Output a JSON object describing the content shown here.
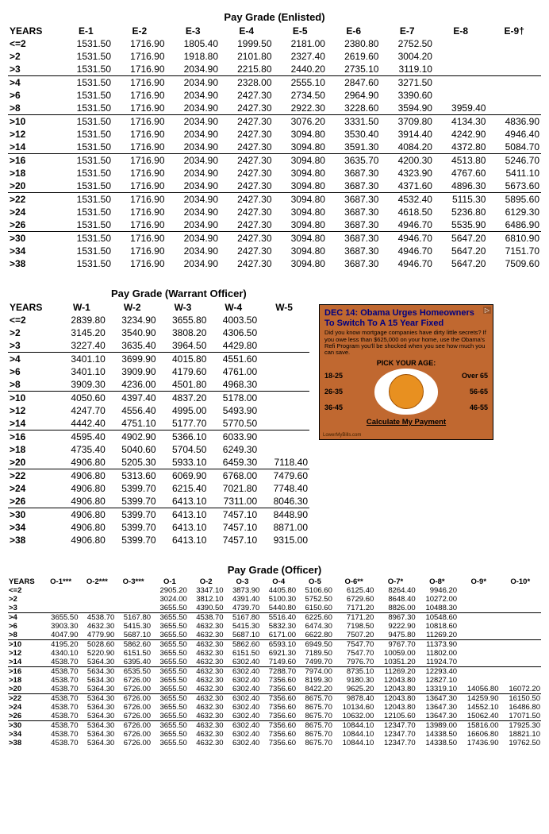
{
  "enlisted": {
    "title": "Pay Grade (Enlisted)",
    "columns": [
      "YEARS",
      "E-1",
      "E-2",
      "E-3",
      "E-4",
      "E-5",
      "E-6",
      "E-7",
      "E-8",
      "E-9†"
    ],
    "groups": [
      {
        "rows": [
          [
            "<=2",
            "1531.50",
            "1716.90",
            "1805.40",
            "1999.50",
            "2181.00",
            "2380.80",
            "2752.50",
            "",
            ""
          ],
          [
            ">2",
            "1531.50",
            "1716.90",
            "1918.80",
            "2101.80",
            "2327.40",
            "2619.60",
            "3004.20",
            "",
            ""
          ],
          [
            ">3",
            "1531.50",
            "1716.90",
            "2034.90",
            "2215.80",
            "2440.20",
            "2735.10",
            "3119.10",
            "",
            ""
          ]
        ]
      },
      {
        "rows": [
          [
            ">4",
            "1531.50",
            "1716.90",
            "2034.90",
            "2328.00",
            "2555.10",
            "2847.60",
            "3271.50",
            "",
            ""
          ],
          [
            ">6",
            "1531.50",
            "1716.90",
            "2034.90",
            "2427.30",
            "2734.50",
            "2964.90",
            "3390.60",
            "",
            ""
          ],
          [
            ">8",
            "1531.50",
            "1716.90",
            "2034.90",
            "2427.30",
            "2922.30",
            "3228.60",
            "3594.90",
            "3959.40",
            ""
          ]
        ]
      },
      {
        "rows": [
          [
            ">10",
            "1531.50",
            "1716.90",
            "2034.90",
            "2427.30",
            "3076.20",
            "3331.50",
            "3709.80",
            "4134.30",
            "4836.90"
          ],
          [
            ">12",
            "1531.50",
            "1716.90",
            "2034.90",
            "2427.30",
            "3094.80",
            "3530.40",
            "3914.40",
            "4242.90",
            "4946.40"
          ],
          [
            ">14",
            "1531.50",
            "1716.90",
            "2034.90",
            "2427.30",
            "3094.80",
            "3591.30",
            "4084.20",
            "4372.80",
            "5084.70"
          ]
        ]
      },
      {
        "rows": [
          [
            ">16",
            "1531.50",
            "1716.90",
            "2034.90",
            "2427.30",
            "3094.80",
            "3635.70",
            "4200.30",
            "4513.80",
            "5246.70"
          ],
          [
            ">18",
            "1531.50",
            "1716.90",
            "2034.90",
            "2427.30",
            "3094.80",
            "3687.30",
            "4323.90",
            "4767.60",
            "5411.10"
          ],
          [
            ">20",
            "1531.50",
            "1716.90",
            "2034.90",
            "2427.30",
            "3094.80",
            "3687.30",
            "4371.60",
            "4896.30",
            "5673.60"
          ]
        ]
      },
      {
        "rows": [
          [
            ">22",
            "1531.50",
            "1716.90",
            "2034.90",
            "2427.30",
            "3094.80",
            "3687.30",
            "4532.40",
            "5115.30",
            "5895.60"
          ],
          [
            ">24",
            "1531.50",
            "1716.90",
            "2034.90",
            "2427.30",
            "3094.80",
            "3687.30",
            "4618.50",
            "5236.80",
            "6129.30"
          ],
          [
            ">26",
            "1531.50",
            "1716.90",
            "2034.90",
            "2427.30",
            "3094.80",
            "3687.30",
            "4946.70",
            "5535.90",
            "6486.90"
          ]
        ]
      },
      {
        "rows": [
          [
            ">30",
            "1531.50",
            "1716.90",
            "2034.90",
            "2427.30",
            "3094.80",
            "3687.30",
            "4946.70",
            "5647.20",
            "6810.90"
          ],
          [
            ">34",
            "1531.50",
            "1716.90",
            "2034.90",
            "2427.30",
            "3094.80",
            "3687.30",
            "4946.70",
            "5647.20",
            "7151.70"
          ],
          [
            ">38",
            "1531.50",
            "1716.90",
            "2034.90",
            "2427.30",
            "3094.80",
            "3687.30",
            "4946.70",
            "5647.20",
            "7509.60"
          ]
        ]
      }
    ]
  },
  "warrant": {
    "title": "Pay Grade (Warrant Officer)",
    "columns": [
      "YEARS",
      "W-1",
      "W-2",
      "W-3",
      "W-4",
      "W-5"
    ],
    "groups": [
      {
        "rows": [
          [
            "<=2",
            "2839.80",
            "3234.90",
            "3655.80",
            "4003.50",
            ""
          ],
          [
            ">2",
            "3145.20",
            "3540.90",
            "3808.20",
            "4306.50",
            ""
          ],
          [
            ">3",
            "3227.40",
            "3635.40",
            "3964.50",
            "4429.80",
            ""
          ]
        ]
      },
      {
        "rows": [
          [
            ">4",
            "3401.10",
            "3699.90",
            "4015.80",
            "4551.60",
            ""
          ],
          [
            ">6",
            "3401.10",
            "3909.90",
            "4179.60",
            "4761.00",
            ""
          ],
          [
            ">8",
            "3909.30",
            "4236.00",
            "4501.80",
            "4968.30",
            ""
          ]
        ]
      },
      {
        "rows": [
          [
            ">10",
            "4050.60",
            "4397.40",
            "4837.20",
            "5178.00",
            ""
          ],
          [
            ">12",
            "4247.70",
            "4556.40",
            "4995.00",
            "5493.90",
            ""
          ],
          [
            ">14",
            "4442.40",
            "4751.10",
            "5177.70",
            "5770.50",
            ""
          ]
        ]
      },
      {
        "rows": [
          [
            ">16",
            "4595.40",
            "4902.90",
            "5366.10",
            "6033.90",
            ""
          ],
          [
            ">18",
            "4735.40",
            "5040.60",
            "5704.50",
            "6249.30",
            ""
          ],
          [
            ">20",
            "4906.80",
            "5205.30",
            "5933.10",
            "6459.30",
            "7118.40"
          ]
        ]
      },
      {
        "rows": [
          [
            ">22",
            "4906.80",
            "5313.60",
            "6069.90",
            "6768.00",
            "7479.60"
          ],
          [
            ">24",
            "4906.80",
            "5399.70",
            "6215.40",
            "7021.80",
            "7748.40"
          ],
          [
            ">26",
            "4906.80",
            "5399.70",
            "6413.10",
            "7311.00",
            "8046.30"
          ]
        ]
      },
      {
        "rows": [
          [
            ">30",
            "4906.80",
            "5399.70",
            "6413.10",
            "7457.10",
            "8448.90"
          ],
          [
            ">34",
            "4906.80",
            "5399.70",
            "6413.10",
            "7457.10",
            "8871.00"
          ],
          [
            ">38",
            "4906.80",
            "5399.70",
            "6413.10",
            "7457.10",
            "9315.00"
          ]
        ]
      }
    ]
  },
  "officer": {
    "title": "Pay Grade (Officer)",
    "columns": [
      "YEARS",
      "O-1***",
      "O-2***",
      "O-3***",
      "O-1",
      "O-2",
      "O-3",
      "O-4",
      "O-5",
      "O-6**",
      "O-7*",
      "O-8*",
      "O-9*",
      "O-10*"
    ],
    "groups": [
      {
        "rows": [
          [
            "<=2",
            "",
            "",
            "",
            "2905.20",
            "3347.10",
            "3873.90",
            "4405.80",
            "5106.60",
            "6125.40",
            "8264.40",
            "9946.20",
            "",
            ""
          ],
          [
            ">2",
            "",
            "",
            "",
            "3024.00",
            "3812.10",
            "4391.40",
            "5100.30",
            "5752.50",
            "6729.60",
            "8648.40",
            "10272.00",
            "",
            ""
          ],
          [
            ">3",
            "",
            "",
            "",
            "3655.50",
            "4390.50",
            "4739.70",
            "5440.80",
            "6150.60",
            "7171.20",
            "8826.00",
            "10488.30",
            "",
            ""
          ]
        ]
      },
      {
        "rows": [
          [
            ">4",
            "3655.50",
            "4538.70",
            "5167.80",
            "3655.50",
            "4538.70",
            "5167.80",
            "5516.40",
            "6225.60",
            "7171.20",
            "8967.30",
            "10548.60",
            "",
            ""
          ],
          [
            ">6",
            "3903.30",
            "4632.30",
            "5415.30",
            "3655.50",
            "4632.30",
            "5415.30",
            "5832.30",
            "6474.30",
            "7198.50",
            "9222.90",
            "10818.60",
            "",
            ""
          ],
          [
            ">8",
            "4047.90",
            "4779.90",
            "5687.10",
            "3655.50",
            "4632.30",
            "5687.10",
            "6171.00",
            "6622.80",
            "7507.20",
            "9475.80",
            "11269.20",
            "",
            ""
          ]
        ]
      },
      {
        "rows": [
          [
            ">10",
            "4195.20",
            "5028.60",
            "5862.60",
            "3655.50",
            "4632.30",
            "5862.60",
            "6593.10",
            "6949.50",
            "7547.70",
            "9767.70",
            "11373.90",
            "",
            ""
          ],
          [
            ">12",
            "4340.10",
            "5220.90",
            "6151.50",
            "3655.50",
            "4632.30",
            "6151.50",
            "6921.30",
            "7189.50",
            "7547.70",
            "10059.00",
            "11802.00",
            "",
            ""
          ],
          [
            ">14",
            "4538.70",
            "5364.30",
            "6395.40",
            "3655.50",
            "4632.30",
            "6302.40",
            "7149.60",
            "7499.70",
            "7976.70",
            "10351.20",
            "11924.70",
            "",
            ""
          ]
        ]
      },
      {
        "rows": [
          [
            ">16",
            "4538.70",
            "5634.30",
            "6535.50",
            "3655.50",
            "4632.30",
            "6302.40",
            "7288.70",
            "7974.00",
            "8735.10",
            "11269.20",
            "12293.40",
            "",
            ""
          ],
          [
            ">18",
            "4538.70",
            "5634.30",
            "6726.00",
            "3655.50",
            "4632.30",
            "6302.40",
            "7356.60",
            "8199.30",
            "9180.30",
            "12043.80",
            "12827.10",
            "",
            ""
          ],
          [
            ">20",
            "4538.70",
            "5364.30",
            "6726.00",
            "3655.50",
            "4632.30",
            "6302.40",
            "7356.60",
            "8422.20",
            "9625.20",
            "12043.80",
            "13319.10",
            "14056.80",
            "16072.20"
          ]
        ]
      },
      {
        "rows": [
          [
            ">22",
            "4538.70",
            "5364.30",
            "6726.00",
            "3655.50",
            "4632.30",
            "6302.40",
            "7356.60",
            "8675.70",
            "9878.40",
            "12043.80",
            "13647.30",
            "14259.90",
            "16150.50"
          ],
          [
            ">24",
            "4538.70",
            "5364.30",
            "6726.00",
            "3655.50",
            "4632.30",
            "6302.40",
            "7356.60",
            "8675.70",
            "10134.60",
            "12043.80",
            "13647.30",
            "14552.10",
            "16486.80"
          ],
          [
            ">26",
            "4538.70",
            "5364.30",
            "6726.00",
            "3655.50",
            "4632.30",
            "6302.40",
            "7356.60",
            "8675.70",
            "10632.00",
            "12105.60",
            "13647.30",
            "15062.40",
            "17071.50"
          ]
        ]
      },
      {
        "rows": [
          [
            ">30",
            "4538.70",
            "5364.30",
            "6726.00",
            "3655.50",
            "4632.30",
            "6302.40",
            "7356.60",
            "8675.70",
            "10844.10",
            "12347.70",
            "13989.00",
            "15816.00",
            "17925.30"
          ],
          [
            ">34",
            "4538.70",
            "5364.30",
            "6726.00",
            "3655.50",
            "4632.30",
            "6302.40",
            "7356.60",
            "8675.70",
            "10844.10",
            "12347.70",
            "14338.50",
            "16606.80",
            "18821.10"
          ],
          [
            ">38",
            "4538.70",
            "5364.30",
            "6726.00",
            "3655.50",
            "4632.30",
            "6302.40",
            "7356.60",
            "8675.70",
            "10844.10",
            "12347.70",
            "14338.50",
            "17436.90",
            "19762.50"
          ]
        ]
      }
    ]
  },
  "ad": {
    "headline1": "DEC 14: Obama Urges Homeowners",
    "headline2": "To Switch To A 15 Year Fixed",
    "sub": "Did you know mortgage companies have dirty little secrets? If you owe less than $625,000 on your home, use the Obama's Refi Program you'll be shocked when you see how much you can save.",
    "pick": "PICK YOUR AGE:",
    "ages_left": [
      "18-25",
      "26-35",
      "36-45"
    ],
    "ages_right": [
      "Over 65",
      "56-65",
      "46-55"
    ],
    "calc": "Calculate My Payment",
    "footer": "LowerMyBills.com",
    "corner": "▷"
  }
}
